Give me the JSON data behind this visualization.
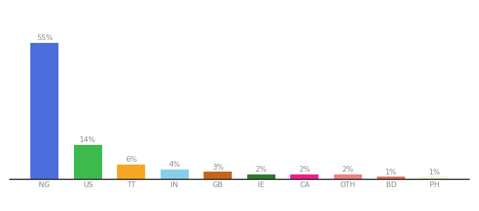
{
  "categories": [
    "NG",
    "US",
    "TT",
    "IN",
    "GB",
    "IE",
    "CA",
    "OTH",
    "BD",
    "PH"
  ],
  "values": [
    55,
    14,
    6,
    4,
    3,
    2,
    2,
    2,
    1,
    1
  ],
  "bar_colors": [
    "#4a6fdc",
    "#3dba4e",
    "#f5a623",
    "#87ceeb",
    "#c8631a",
    "#2d7a2d",
    "#f01e8f",
    "#f08080",
    "#e07060",
    "#f5f0d8"
  ],
  "label_fontsize": 7.5,
  "tick_fontsize": 7.5,
  "ylim": [
    0,
    68
  ],
  "figsize": [
    6.8,
    3.0
  ],
  "dpi": 100,
  "background_color": "#ffffff",
  "label_color": "#888888",
  "tick_color": "#888888"
}
